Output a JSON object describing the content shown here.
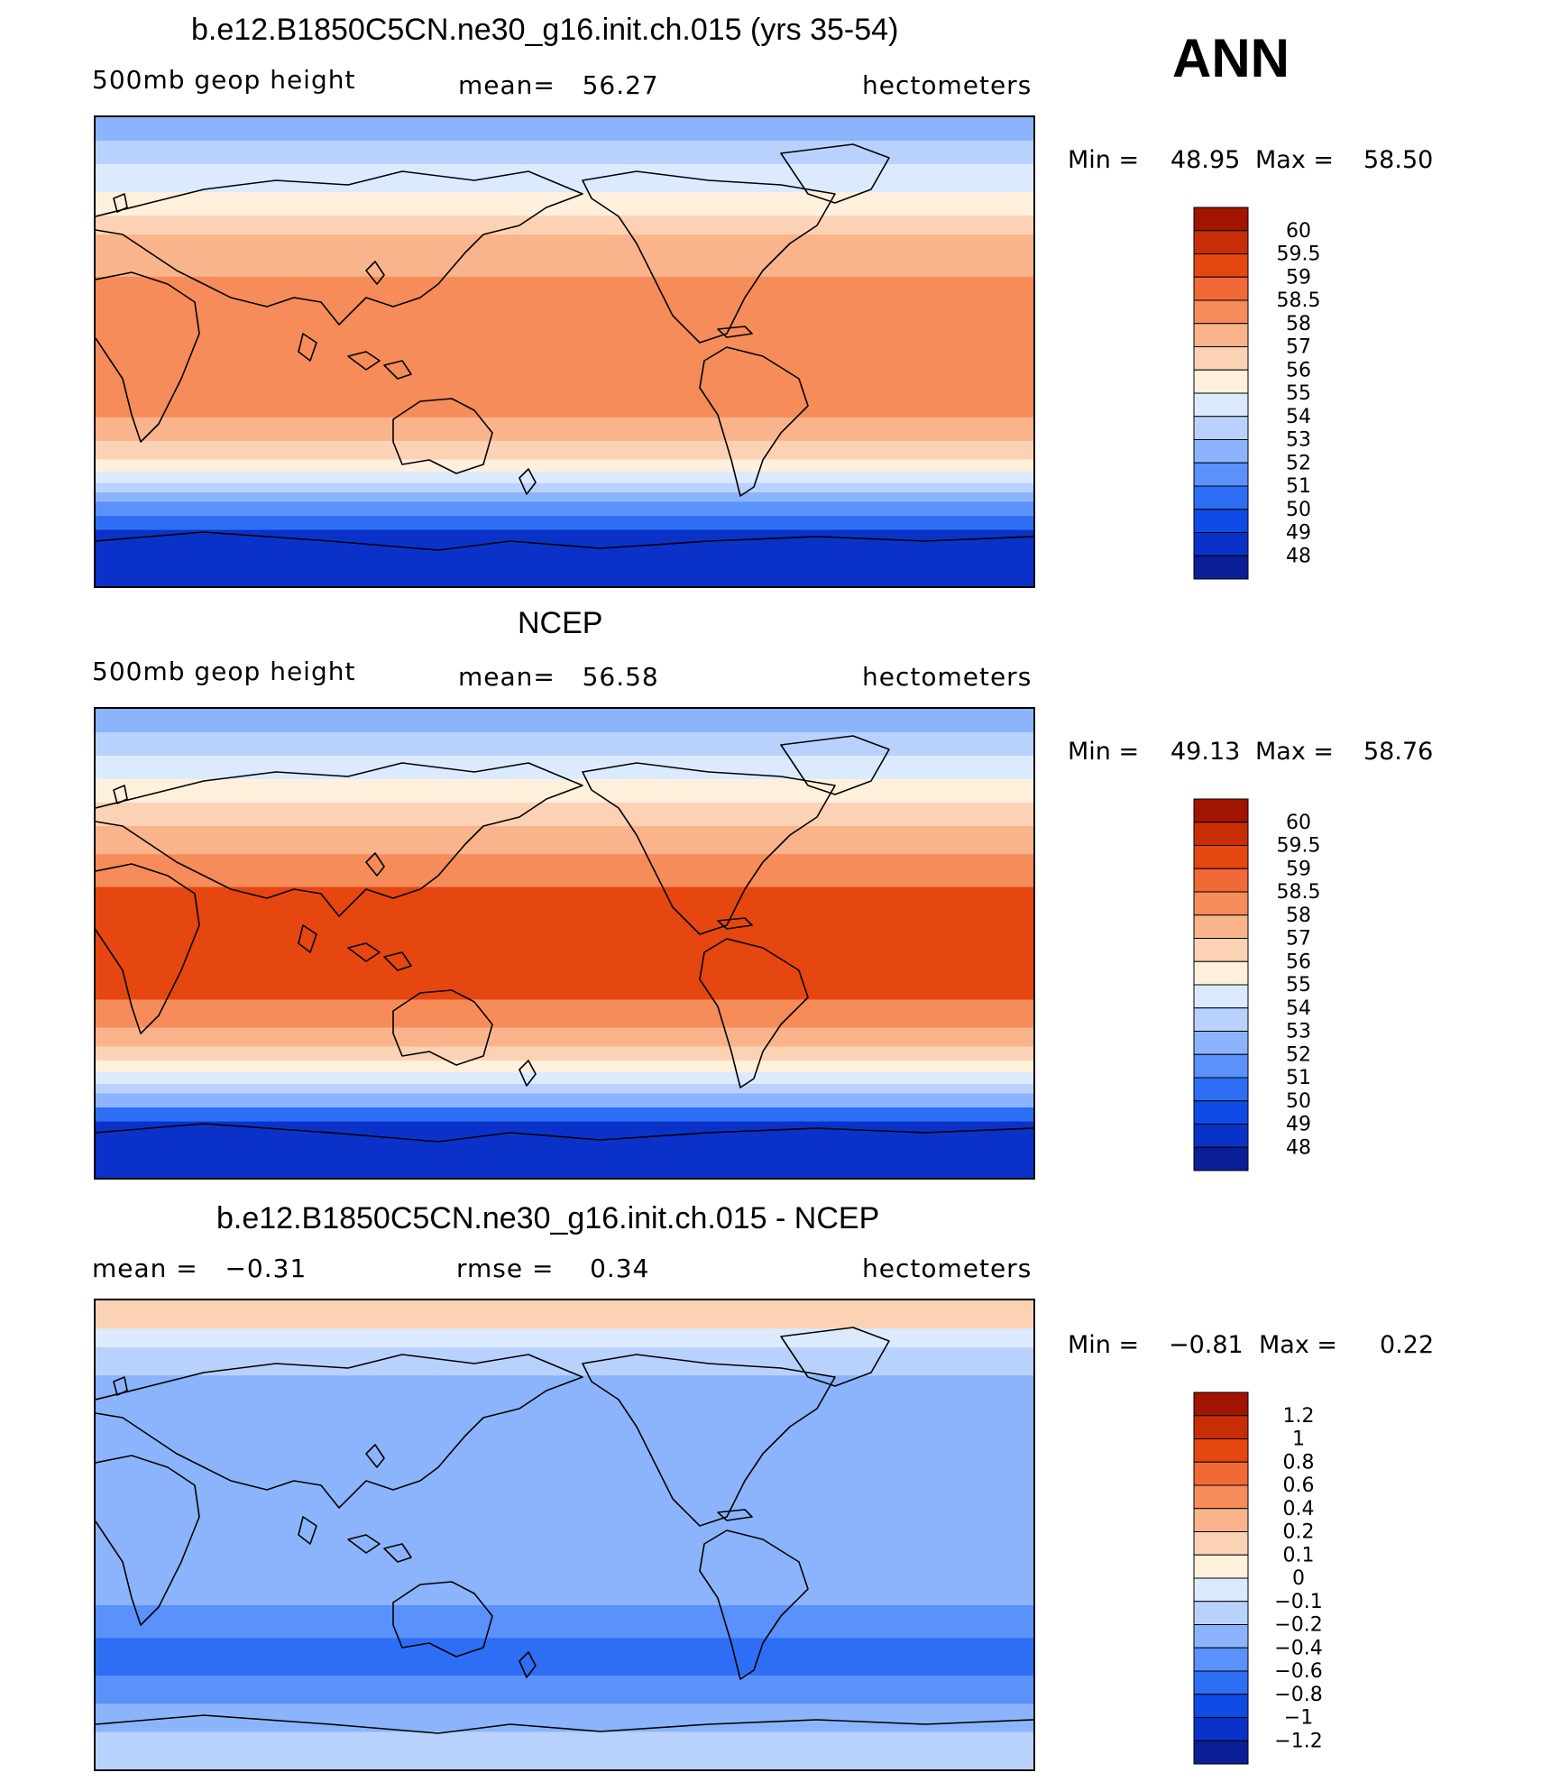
{
  "season_label": "ANN",
  "palette": [
    "#08006e",
    "#0a1e96",
    "#0a32c8",
    "#0f4be6",
    "#2d6ef5",
    "#5a91fa",
    "#8cb4fc",
    "#b9d2fd",
    "#dceaff",
    "#fff0dc",
    "#fcd2b4",
    "#fab48c",
    "#f58c5a",
    "#f06937",
    "#e6460f",
    "#c82d05",
    "#a01400",
    "#7d0000"
  ],
  "panels": [
    {
      "title": "b.e12.B1850C5CN.ne30_g16.init.ch.015 (yrs 35-54)",
      "variable": "500mb geop height",
      "stat1": "mean=   56.27",
      "units": "hectometers",
      "min_label": "Min =",
      "min_value": "48.95",
      "max_label": "Max =",
      "max_value": "58.50",
      "levels": [
        "60",
        "59.5",
        "59",
        "58.5",
        "58",
        "57",
        "56",
        "55",
        "54",
        "53",
        "52",
        "51",
        "50",
        "49",
        "48"
      ],
      "bands": [
        {
          "upto": 0.05,
          "color": "#8cb4fc"
        },
        {
          "upto": 0.1,
          "color": "#b9d2fd"
        },
        {
          "upto": 0.16,
          "color": "#dceaff"
        },
        {
          "upto": 0.21,
          "color": "#fff0dc"
        },
        {
          "upto": 0.25,
          "color": "#fcd2b4"
        },
        {
          "upto": 0.34,
          "color": "#fab48c"
        },
        {
          "upto": 0.64,
          "color": "#f58c5a"
        },
        {
          "upto": 0.69,
          "color": "#fab48c"
        },
        {
          "upto": 0.73,
          "color": "#fcd2b4"
        },
        {
          "upto": 0.755,
          "color": "#fff0dc"
        },
        {
          "upto": 0.78,
          "color": "#dceaff"
        },
        {
          "upto": 0.8,
          "color": "#b9d2fd"
        },
        {
          "upto": 0.82,
          "color": "#8cb4fc"
        },
        {
          "upto": 0.85,
          "color": "#5a91fa"
        },
        {
          "upto": 0.88,
          "color": "#2d6ef5"
        },
        {
          "upto": 1.0,
          "color": "#0a32c8"
        }
      ]
    },
    {
      "title": "NCEP",
      "variable": "500mb geop height",
      "stat1": "mean=   56.58",
      "units": "hectometers",
      "min_label": "Min =",
      "min_value": "49.13",
      "max_label": "Max =",
      "max_value": "58.76",
      "levels": [
        "60",
        "59.5",
        "59",
        "58.5",
        "58",
        "57",
        "56",
        "55",
        "54",
        "53",
        "52",
        "51",
        "50",
        "49",
        "48"
      ],
      "bands": [
        {
          "upto": 0.05,
          "color": "#8cb4fc"
        },
        {
          "upto": 0.1,
          "color": "#b9d2fd"
        },
        {
          "upto": 0.15,
          "color": "#dceaff"
        },
        {
          "upto": 0.2,
          "color": "#fff0dc"
        },
        {
          "upto": 0.25,
          "color": "#fcd2b4"
        },
        {
          "upto": 0.31,
          "color": "#fab48c"
        },
        {
          "upto": 0.38,
          "color": "#f58c5a"
        },
        {
          "upto": 0.62,
          "color": "#e6460f"
        },
        {
          "upto": 0.68,
          "color": "#f58c5a"
        },
        {
          "upto": 0.72,
          "color": "#fab48c"
        },
        {
          "upto": 0.75,
          "color": "#fcd2b4"
        },
        {
          "upto": 0.775,
          "color": "#fff0dc"
        },
        {
          "upto": 0.8,
          "color": "#dceaff"
        },
        {
          "upto": 0.82,
          "color": "#b9d2fd"
        },
        {
          "upto": 0.85,
          "color": "#8cb4fc"
        },
        {
          "upto": 0.88,
          "color": "#2d6ef5"
        },
        {
          "upto": 1.0,
          "color": "#0a32c8"
        }
      ]
    },
    {
      "title": "b.e12.B1850C5CN.ne30_g16.init.ch.015 - NCEP",
      "variable": "mean =   −0.31",
      "stat1": "rmse =    0.34",
      "units": "hectometers",
      "min_label": "Min =",
      "min_value": "−0.81",
      "max_label": "Max =",
      "max_value": "0.22",
      "levels": [
        "1.2",
        "1",
        "0.8",
        "0.6",
        "0.4",
        "0.2",
        "0.1",
        "0",
        "−0.1",
        "−0.2",
        "−0.4",
        "−0.6",
        "−0.8",
        "−1",
        "−1.2"
      ],
      "bands": [
        {
          "upto": 0.06,
          "color": "#fcd2b4"
        },
        {
          "upto": 0.1,
          "color": "#dceaff"
        },
        {
          "upto": 0.16,
          "color": "#b9d2fd"
        },
        {
          "upto": 0.65,
          "color": "#8cb4fc"
        },
        {
          "upto": 0.72,
          "color": "#5a91fa"
        },
        {
          "upto": 0.8,
          "color": "#2d6ef5"
        },
        {
          "upto": 0.86,
          "color": "#5a91fa"
        },
        {
          "upto": 0.92,
          "color": "#8cb4fc"
        },
        {
          "upto": 1.0,
          "color": "#b9d2fd"
        }
      ]
    }
  ],
  "chart_data": [
    {
      "type": "heatmap",
      "title": "b.e12.B1850C5CN.ne30_g16.init.ch.015 (yrs 35-54)",
      "variable": "500mb geop height",
      "units": "hectometers",
      "mean": 56.27,
      "min": 48.95,
      "max": 58.5,
      "contour_levels": [
        48,
        49,
        50,
        51,
        52,
        53,
        54,
        55,
        56,
        57,
        58,
        58.5,
        59,
        59.5,
        60
      ]
    },
    {
      "type": "heatmap",
      "title": "NCEP",
      "variable": "500mb geop height",
      "units": "hectometers",
      "mean": 56.58,
      "min": 49.13,
      "max": 58.76,
      "contour_levels": [
        48,
        49,
        50,
        51,
        52,
        53,
        54,
        55,
        56,
        57,
        58,
        58.5,
        59,
        59.5,
        60
      ]
    },
    {
      "type": "heatmap",
      "title": "b.e12.B1850C5CN.ne30_g16.init.ch.015 - NCEP",
      "units": "hectometers",
      "mean": -0.31,
      "rmse": 0.34,
      "min": -0.81,
      "max": 0.22,
      "contour_levels": [
        -1.2,
        -1,
        -0.8,
        -0.6,
        -0.4,
        -0.2,
        -0.1,
        0,
        0.1,
        0.2,
        0.4,
        0.6,
        0.8,
        1,
        1.2
      ]
    }
  ]
}
